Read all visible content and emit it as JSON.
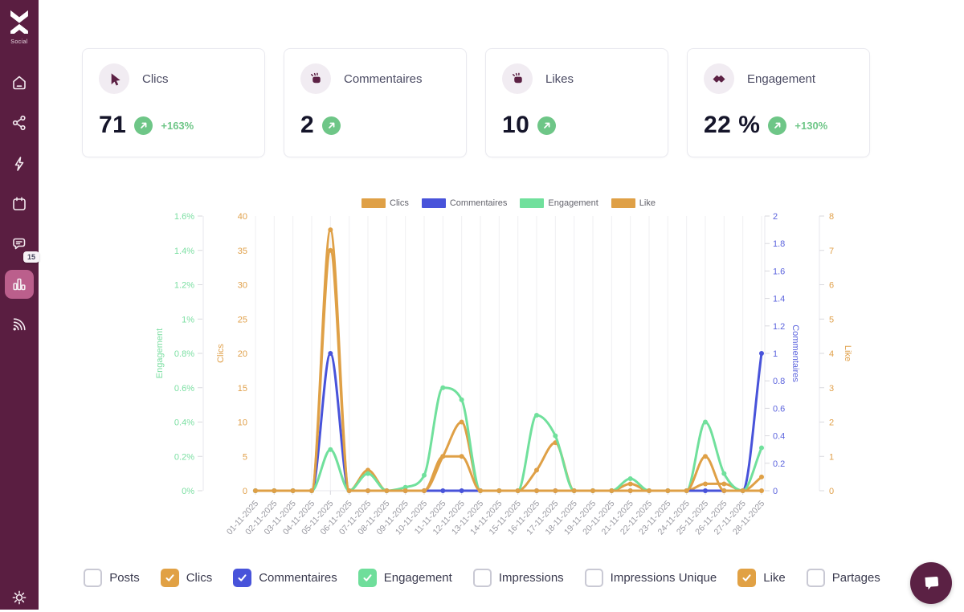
{
  "sidebar": {
    "brand": "Social",
    "notification_badge": "15",
    "items": [
      {
        "icon": "home-icon",
        "active": false
      },
      {
        "icon": "share-icon",
        "active": false
      },
      {
        "icon": "bolt-icon",
        "active": false
      },
      {
        "icon": "calendar-icon",
        "active": false
      },
      {
        "icon": "messages-icon",
        "active": false,
        "badge": "15"
      },
      {
        "icon": "analytics-icon",
        "active": true
      },
      {
        "icon": "feed-icon",
        "active": false
      }
    ]
  },
  "cards": [
    {
      "label": "Clics",
      "value": "71",
      "delta": "+163%"
    },
    {
      "label": "Commentaires",
      "value": "2",
      "delta": ""
    },
    {
      "label": "Likes",
      "value": "10",
      "delta": ""
    },
    {
      "label": "Engagement",
      "value": "22 %",
      "delta": "+130%"
    }
  ],
  "chart_data": {
    "type": "line",
    "x": [
      "01-11-2025",
      "02-11-2025",
      "03-11-2025",
      "04-11-2025",
      "05-11-2025",
      "06-11-2025",
      "07-11-2025",
      "08-11-2025",
      "09-11-2025",
      "10-11-2025",
      "11-11-2025",
      "12-11-2025",
      "13-11-2025",
      "14-11-2025",
      "15-11-2025",
      "16-11-2025",
      "17-11-2025",
      "18-11-2025",
      "19-11-2025",
      "20-11-2025",
      "21-11-2025",
      "22-11-2025",
      "23-11-2025",
      "24-11-2025",
      "25-11-2025",
      "26-11-2025",
      "27-11-2025",
      "28-11-2025"
    ],
    "series": [
      {
        "name": "Clics",
        "axis": "clics",
        "color": "#dfa046",
        "values": [
          0,
          0,
          0,
          0,
          38,
          0,
          3,
          0,
          0,
          0,
          5,
          10,
          0,
          0,
          0,
          3,
          7,
          0,
          0,
          0,
          1,
          0,
          0,
          0,
          1,
          1,
          0,
          2
        ]
      },
      {
        "name": "Commentaires",
        "axis": "commentaires",
        "color": "#4853da",
        "values": [
          0,
          0,
          0,
          0,
          1,
          0,
          0,
          0,
          0,
          0,
          0,
          0,
          0,
          0,
          0,
          0,
          0,
          0,
          0,
          0,
          0,
          0,
          0,
          0,
          0,
          0,
          0,
          1
        ]
      },
      {
        "name": "Engagement",
        "axis": "engagement",
        "color": "#70e09c",
        "values": [
          0,
          0,
          0,
          0,
          0.24,
          0,
          0.1,
          0,
          0.02,
          0.09,
          0.6,
          0.53,
          0,
          0,
          0,
          0.44,
          0.32,
          0,
          0,
          0,
          0.07,
          0,
          0,
          0,
          0.4,
          0.1,
          0,
          0.25
        ]
      },
      {
        "name": "Like",
        "axis": "like",
        "color": "#dfa046",
        "values": [
          0,
          0,
          0,
          0,
          7,
          0,
          0,
          0,
          0,
          0,
          1,
          1,
          0,
          0,
          0,
          0,
          0,
          0,
          0,
          0,
          0,
          0,
          0,
          0,
          1,
          0,
          0,
          0
        ]
      }
    ],
    "axes": {
      "engagement": {
        "title": "Engagement",
        "side": "left",
        "min": 0,
        "max": 1.6,
        "color": "#7bdfa2",
        "tick_labels": [
          "0%",
          "0.2%",
          "0.4%",
          "0.6%",
          "0.8%",
          "1%",
          "1.2%",
          "1.4%",
          "1.6%"
        ]
      },
      "clics": {
        "title": "Clics",
        "side": "left",
        "min": 0,
        "max": 40,
        "color": "#e0a04a",
        "tick_labels": [
          "0",
          "5",
          "10",
          "15",
          "20",
          "25",
          "30",
          "35",
          "40"
        ]
      },
      "commentaires": {
        "title": "Commentaires",
        "side": "right",
        "min": 0,
        "max": 2,
        "color": "#5b63dd",
        "tick_labels": [
          "0",
          "0.2",
          "0.4",
          "0.6",
          "0.8",
          "1",
          "1.2",
          "1.4",
          "1.6",
          "1.8",
          "2"
        ]
      },
      "like": {
        "title": "Like",
        "side": "right",
        "min": 0,
        "max": 8,
        "color": "#e0a04a",
        "tick_labels": [
          "0",
          "1",
          "2",
          "3",
          "4",
          "5",
          "6",
          "7",
          "8"
        ]
      }
    },
    "legend": [
      {
        "label": "Clics",
        "color": "#dfa046"
      },
      {
        "label": "Commentaires",
        "color": "#4853da"
      },
      {
        "label": "Engagement",
        "color": "#70e09c"
      },
      {
        "label": "Like",
        "color": "#dfa046"
      }
    ],
    "grid": "vertical",
    "x_label_rotation": -48
  },
  "filters": [
    {
      "label": "Posts",
      "checked": false,
      "color": "#e1a144"
    },
    {
      "label": "Clics",
      "checked": true,
      "color": "#e1a144"
    },
    {
      "label": "Commentaires",
      "checked": true,
      "color": "#4853da"
    },
    {
      "label": "Engagement",
      "checked": true,
      "color": "#6fde9b"
    },
    {
      "label": "Impressions",
      "checked": false,
      "color": "#e1a144"
    },
    {
      "label": "Impressions Unique",
      "checked": false,
      "color": "#e1a144"
    },
    {
      "label": "Like",
      "checked": true,
      "color": "#e1a144"
    },
    {
      "label": "Partages",
      "checked": false,
      "color": "#e1a144"
    }
  ],
  "colors": {
    "sidebar_bg": "#5a1e41",
    "sidebar_active": "#bb5f8c",
    "positive_green": "#6ec687",
    "orange": "#dfa046",
    "blue": "#4853da",
    "green": "#70e09c"
  }
}
